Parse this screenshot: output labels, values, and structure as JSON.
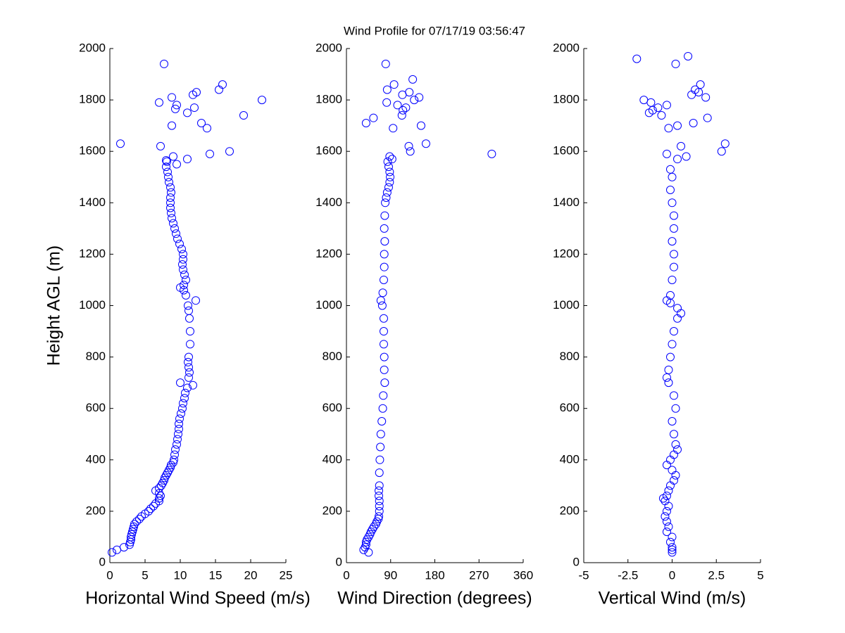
{
  "title": "Wind Profile for  07/17/19 03:56:47",
  "chart_data": [
    {
      "type": "scatter",
      "xlabel": "Horizontal Wind Speed (m/s)",
      "ylabel": "Height AGL (m)",
      "color": "#0000ff",
      "xlim": [
        0,
        25
      ],
      "xticks": [
        0,
        5,
        10,
        15,
        20,
        25
      ],
      "ylim": [
        0,
        2000
      ],
      "yticks": [
        0,
        200,
        400,
        600,
        800,
        1000,
        1200,
        1400,
        1600,
        1800,
        2000
      ],
      "x": [
        0.3,
        1,
        2,
        2.8,
        2.9,
        3,
        3,
        3.1,
        3.2,
        3.3,
        3.4,
        3.5,
        3.8,
        4.2,
        4.5,
        5,
        5.5,
        5.8,
        6.2,
        6.5,
        7,
        7,
        7.2,
        7,
        6.5,
        7,
        7.3,
        7.5,
        7.7,
        7.8,
        8,
        8.2,
        8.4,
        8.6,
        8.7,
        9,
        9.1,
        9.2,
        9.3,
        9.5,
        9.6,
        9.7,
        9.8,
        9.8,
        9.9,
        10.1,
        10.3,
        10.4,
        10.6,
        10.7,
        11,
        11.8,
        10,
        11.2,
        11.3,
        11.2,
        11.1,
        11.2,
        11.4,
        11.4,
        11.3,
        11.2,
        11.1,
        12.2,
        10.8,
        10.5,
        10,
        10.5,
        10.8,
        10.6,
        10.4,
        10.3,
        10.4,
        10.4,
        10.2,
        9.9,
        9.6,
        9.4,
        9.2,
        9.0,
        8.8,
        8.7,
        8.6,
        8.6,
        8.6,
        8.7,
        8.6,
        8.4,
        8.3,
        8.2,
        8,
        9.5,
        8.1,
        1.5,
        7.2,
        8,
        11,
        9,
        14.2,
        17,
        7,
        8.8,
        9.5,
        9.3,
        11,
        8.8,
        11.8,
        12.3,
        12,
        13,
        13.8,
        15.5,
        16,
        19,
        21.6,
        7.7
      ],
      "y": [
        40,
        50,
        60,
        70,
        80,
        90,
        100,
        110,
        120,
        130,
        140,
        150,
        160,
        170,
        180,
        190,
        200,
        210,
        220,
        230,
        240,
        250,
        260,
        270,
        280,
        290,
        300,
        310,
        320,
        330,
        340,
        350,
        360,
        370,
        380,
        390,
        400,
        420,
        440,
        460,
        480,
        500,
        520,
        540,
        560,
        580,
        600,
        620,
        640,
        660,
        680,
        690,
        700,
        720,
        740,
        760,
        780,
        800,
        850,
        900,
        950,
        980,
        1000,
        1020,
        1040,
        1060,
        1070,
        1080,
        1100,
        1120,
        1140,
        1160,
        1180,
        1200,
        1220,
        1240,
        1260,
        1280,
        1300,
        1320,
        1340,
        1360,
        1380,
        1400,
        1420,
        1440,
        1460,
        1480,
        1500,
        1520,
        1540,
        1550,
        1560,
        1630,
        1620,
        1565,
        1570,
        1580,
        1590,
        1600,
        1790,
        1810,
        1780,
        1765,
        1750,
        1700,
        1820,
        1830,
        1770,
        1710,
        1690,
        1840,
        1860,
        1740,
        1800,
        1940
      ]
    },
    {
      "type": "scatter",
      "xlabel": "Wind Direction (degrees)",
      "color": "#0000ff",
      "xlim": [
        0,
        360
      ],
      "xticks": [
        0,
        90,
        180,
        270,
        360
      ],
      "ylim": [
        0,
        2000
      ],
      "yticks": [
        0,
        200,
        400,
        600,
        800,
        1000,
        1200,
        1400,
        1600,
        1800,
        2000
      ],
      "x": [
        45,
        35,
        38,
        40,
        40,
        42,
        45,
        48,
        50,
        53,
        56,
        60,
        62,
        65,
        66,
        67,
        67,
        67,
        66,
        66,
        67,
        67,
        68,
        69,
        70,
        72,
        74,
        75,
        78,
        77,
        77,
        76,
        76,
        76,
        73,
        70,
        74,
        76,
        77,
        77,
        78,
        77,
        78,
        79,
        81,
        83,
        86,
        88,
        89,
        88,
        86,
        84,
        40,
        55,
        88,
        93,
        296,
        130,
        127,
        162,
        152,
        95,
        113,
        115,
        104,
        82,
        121,
        83,
        97,
        128,
        114,
        148,
        138,
        135,
        80
      ],
      "y": [
        40,
        50,
        60,
        70,
        80,
        90,
        100,
        110,
        120,
        130,
        140,
        150,
        160,
        170,
        180,
        200,
        220,
        240,
        260,
        280,
        300,
        350,
        400,
        450,
        500,
        550,
        600,
        650,
        700,
        750,
        800,
        850,
        900,
        950,
        1000,
        1020,
        1050,
        1100,
        1150,
        1200,
        1250,
        1300,
        1350,
        1400,
        1420,
        1440,
        1460,
        1480,
        1500,
        1520,
        1540,
        1560,
        1710,
        1730,
        1580,
        1570,
        1590,
        1600,
        1620,
        1630,
        1700,
        1690,
        1740,
        1760,
        1780,
        1790,
        1770,
        1840,
        1860,
        1830,
        1820,
        1810,
        1800,
        1880,
        1940
      ]
    },
    {
      "type": "scatter",
      "xlabel": "Vertical Wind (m/s)",
      "color": "#0000ff",
      "xlim": [
        -5,
        5
      ],
      "xticks": [
        -5,
        -2.5,
        0,
        2.5,
        5
      ],
      "ylim": [
        0,
        2000
      ],
      "yticks": [
        0,
        200,
        400,
        600,
        800,
        1000,
        1200,
        1400,
        1600,
        1800,
        2000
      ],
      "x": [
        0,
        0,
        0,
        -0.1,
        0,
        -0.3,
        -0.2,
        -0.3,
        -0.4,
        -0.3,
        -0.2,
        -0.4,
        -0.5,
        -0.3,
        -0.2,
        -0.1,
        0.1,
        0.2,
        0,
        -0.3,
        -0.1,
        0.1,
        0.3,
        0.2,
        0.1,
        0,
        0.2,
        0.1,
        -0.2,
        -0.3,
        -0.2,
        -0.1,
        0,
        0.1,
        0.3,
        0.5,
        0.3,
        -0.1,
        -0.3,
        -0.1,
        0,
        0.1,
        0.1,
        0,
        0.1,
        0.1,
        0,
        -0.1,
        0,
        -0.1,
        -0.3,
        0.5,
        0.3,
        0.8,
        2.8,
        3,
        -0.2,
        0.3,
        1.2,
        2,
        -1.3,
        -1.1,
        -0.8,
        -0.6,
        -1.2,
        -1.6,
        -0.3,
        1.1,
        1.3,
        1.5,
        1.6,
        1.9,
        -2,
        0.9,
        0.2
      ],
      "y": [
        40,
        50,
        60,
        80,
        100,
        120,
        140,
        160,
        180,
        200,
        220,
        240,
        250,
        260,
        280,
        300,
        320,
        340,
        360,
        380,
        400,
        420,
        440,
        460,
        500,
        550,
        600,
        650,
        700,
        720,
        750,
        800,
        850,
        900,
        950,
        970,
        990,
        1010,
        1020,
        1040,
        1100,
        1150,
        1200,
        1250,
        1300,
        1350,
        1400,
        1450,
        1500,
        1530,
        1590,
        1620,
        1570,
        1580,
        1600,
        1630,
        1690,
        1700,
        1710,
        1730,
        1750,
        1760,
        1770,
        1740,
        1790,
        1800,
        1780,
        1820,
        1840,
        1830,
        1860,
        1810,
        1960,
        1970,
        1940
      ]
    }
  ]
}
